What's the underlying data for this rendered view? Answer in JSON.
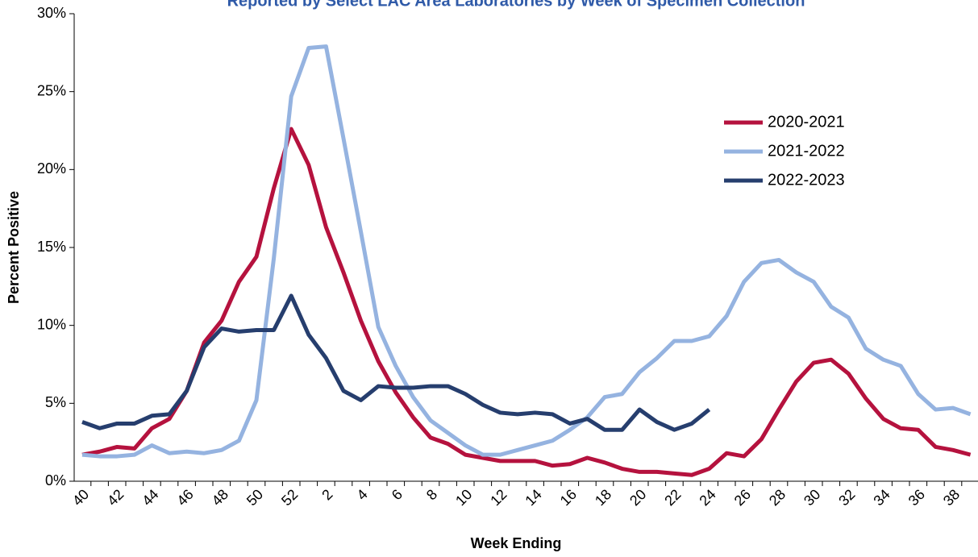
{
  "chart_data": {
    "type": "line",
    "title": "Reported by Select LAC Area Laboratories by Week of Specimen Collection",
    "x_label": "Week Ending",
    "y_label": "Percent Positive",
    "categories": [
      "40",
      null,
      "42",
      null,
      "44",
      null,
      "46",
      null,
      "48",
      null,
      "50",
      null,
      "52",
      null,
      "2",
      null,
      "4",
      null,
      "6",
      null,
      "8",
      null,
      "10",
      null,
      "12",
      null,
      "14",
      null,
      "16",
      null,
      "18",
      null,
      "20",
      null,
      "22",
      null,
      "24",
      null,
      "26",
      null,
      "28",
      null,
      "30",
      null,
      "32",
      null,
      "34",
      null,
      "36",
      null,
      "38",
      null
    ],
    "series": [
      {
        "name": "2020-2021",
        "color": "#b5123e",
        "values": [
          1.7,
          1.9,
          2.2,
          2.1,
          3.4,
          4.0,
          5.8,
          8.9,
          10.3,
          12.8,
          14.4,
          18.8,
          22.6,
          20.3,
          16.3,
          13.4,
          10.3,
          7.7,
          5.7,
          4.1,
          2.8,
          2.4,
          1.7,
          1.5,
          1.3,
          1.3,
          1.3,
          1.0,
          1.1,
          1.5,
          1.2,
          0.8,
          0.6,
          0.6,
          0.5,
          0.4,
          0.8,
          1.8,
          1.6,
          2.7,
          4.6,
          6.4,
          7.6,
          7.8,
          6.9,
          5.3,
          4.0,
          3.4,
          3.3,
          2.2,
          2.0,
          1.7
        ]
      },
      {
        "name": "2021-2022",
        "color": "#95b3e0",
        "values": [
          1.7,
          1.6,
          1.6,
          1.7,
          2.3,
          1.8,
          1.9,
          1.8,
          2.0,
          2.6,
          5.2,
          14.3,
          24.7,
          27.8,
          27.9,
          22.0,
          16.0,
          9.9,
          7.4,
          5.4,
          3.9,
          3.1,
          2.3,
          1.7,
          1.7,
          2.0,
          2.3,
          2.6,
          3.3,
          4.1,
          5.4,
          5.6,
          7.0,
          7.9,
          9.0,
          9.0,
          9.3,
          10.6,
          12.8,
          14.0,
          14.2,
          13.4,
          12.8,
          11.2,
          10.5,
          8.5,
          7.8,
          7.4,
          5.6,
          4.6,
          4.7,
          4.3
        ]
      },
      {
        "name": "2022-2023",
        "color": "#263e6e",
        "values": [
          3.8,
          3.4,
          3.7,
          3.7,
          4.2,
          4.3,
          5.8,
          8.6,
          9.8,
          9.6,
          9.7,
          9.7,
          11.9,
          9.4,
          7.9,
          5.8,
          5.2,
          6.1,
          6.0,
          6.0,
          6.1,
          6.1,
          5.6,
          4.9,
          4.4,
          4.3,
          4.4,
          4.3,
          3.7,
          4.0,
          3.3,
          3.3,
          4.6,
          3.8,
          3.3,
          3.7,
          4.6,
          null,
          null,
          null,
          null,
          null,
          null,
          null,
          null,
          null,
          null,
          null,
          null,
          null,
          null,
          null
        ]
      }
    ],
    "ylim": [
      0,
      30
    ],
    "yticks": [
      {
        "value": 0,
        "label": "0%"
      },
      {
        "value": 5,
        "label": "5%"
      },
      {
        "value": 10,
        "label": "10%"
      },
      {
        "value": 15,
        "label": "15%"
      },
      {
        "value": 20,
        "label": "20%"
      },
      {
        "value": 25,
        "label": "25%"
      },
      {
        "value": 30,
        "label": "30%"
      }
    ]
  }
}
